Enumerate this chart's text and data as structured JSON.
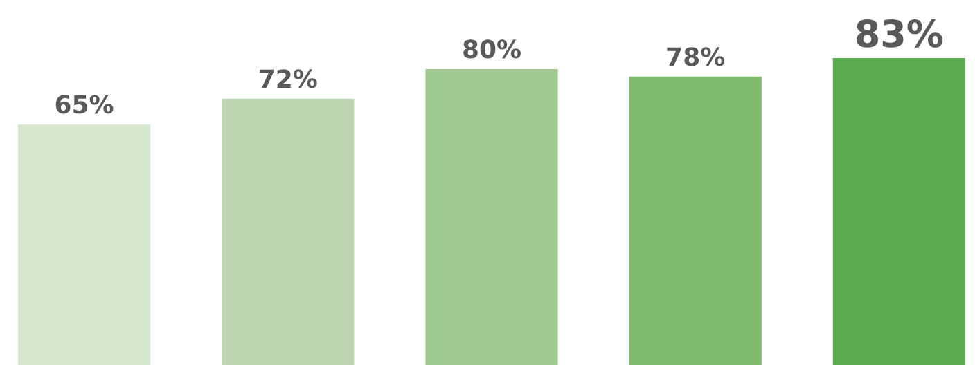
{
  "chart_data": {
    "type": "bar",
    "categories": [
      null,
      null,
      null,
      null,
      null
    ],
    "values": [
      65,
      72,
      80,
      78,
      83
    ],
    "colors": [
      "#d5e6cf",
      "#bdd8b0",
      "#a0ca92",
      "#80ba6f",
      "#58ab4e"
    ],
    "value_labels": [
      "65%",
      "72%",
      "80%",
      "78%",
      "83%"
    ]
  }
}
